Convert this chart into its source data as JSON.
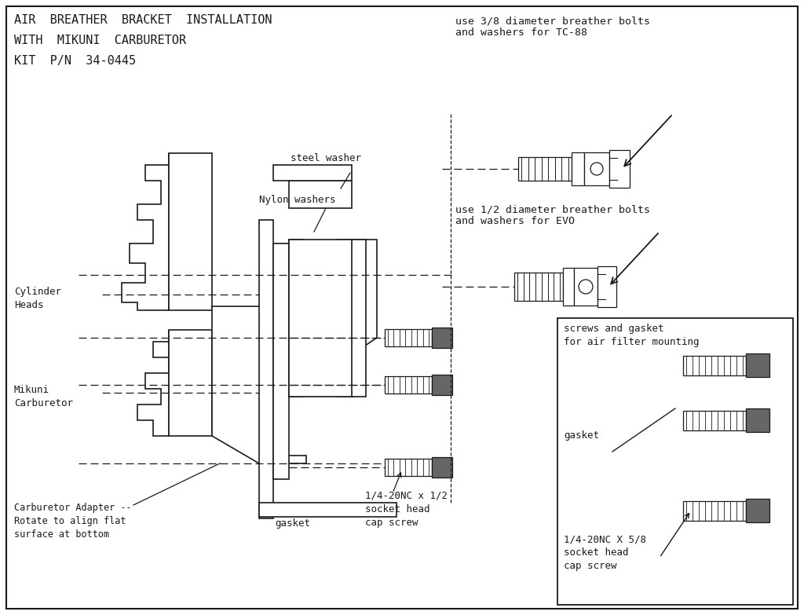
{
  "bg_color": "#ffffff",
  "line_color": "#1a1a1a",
  "title_lines": [
    "AIR  BREATHER  BRACKET  INSTALLATION",
    "WITH  MIKUNI  CARBURETOR",
    "KIT  P/N  34-0445"
  ],
  "tc88_label": "use 3/8 diameter breather bolts\nand washers for TC-88",
  "evo_label": "use 1/2 diameter breather bolts\nand washers for EVO",
  "steel_washer_label": "steel washer",
  "nylon_washers_label": "Nylon washers",
  "cylinder_heads_label": "Cylinder\nHeads",
  "mikuni_carb_label": "Mikuni\nCarburetor",
  "carb_adapter_label": "Carburetor Adapter --\nRotate to align flat\nsurface at bottom",
  "gasket_bottom_label": "gasket",
  "screw_half_label": "1/4-20NC x 1/2\nsocket head\ncap screw",
  "screws_gasket_label": "screws and gasket\nfor air filter mounting",
  "gasket_right_label": "gasket",
  "screw_58_label": "1/4-20NC X 5/8\nsocket head\ncap screw"
}
